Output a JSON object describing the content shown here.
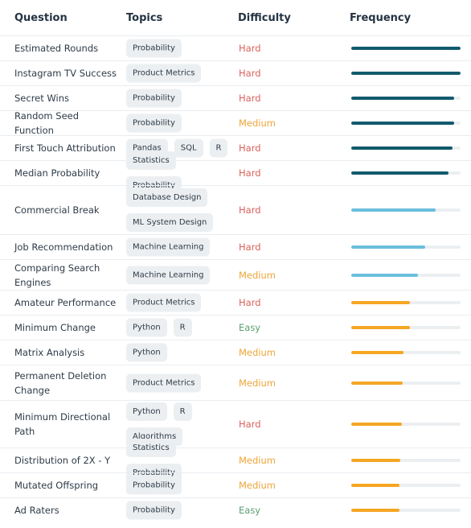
{
  "headers": {
    "question": "Question",
    "topics": "Topics",
    "difficulty": "Difficulty",
    "frequency": "Frequency"
  },
  "colors": {
    "hard": "#d9625b",
    "medium": "#eda53a",
    "easy": "#5a9e6f",
    "freq_high": "#125a6e",
    "freq_mid": "#6bbfde",
    "freq_low": "#f5a623"
  },
  "rows": [
    {
      "question": "Estimated Rounds",
      "topics": [
        "Probability"
      ],
      "difficulty": "Hard",
      "frequency": 1.0,
      "freq_color": "#125a6e"
    },
    {
      "question": "Instagram TV Success",
      "topics": [
        "Product Metrics"
      ],
      "difficulty": "Hard",
      "frequency": 1.0,
      "freq_color": "#125a6e"
    },
    {
      "question": "Secret Wins",
      "topics": [
        "Probability"
      ],
      "difficulty": "Hard",
      "frequency": 0.94,
      "freq_color": "#125a6e"
    },
    {
      "question": "Random Seed Function",
      "topics": [
        "Probability"
      ],
      "difficulty": "Medium",
      "frequency": 0.94,
      "freq_color": "#125a6e"
    },
    {
      "question": "First Touch Attribution",
      "topics": [
        "Pandas",
        "SQL",
        "R"
      ],
      "difficulty": "Hard",
      "frequency": 0.93,
      "freq_color": "#125a6e"
    },
    {
      "question": "Median Probability",
      "topics": [
        "Statistics",
        "Probability"
      ],
      "difficulty": "Hard",
      "frequency": 0.89,
      "freq_color": "#125a6e"
    },
    {
      "question": "Commercial Break",
      "topics": [
        "Database Design",
        "ML System Design"
      ],
      "difficulty": "Hard",
      "frequency": 0.77,
      "freq_color": "#6bbfde"
    },
    {
      "question": "Job Recommendation",
      "topics": [
        "Machine Learning"
      ],
      "difficulty": "Hard",
      "frequency": 0.68,
      "freq_color": "#6bbfde"
    },
    {
      "question": "Comparing Search Engines",
      "topics": [
        "Machine Learning"
      ],
      "difficulty": "Medium",
      "frequency": 0.61,
      "freq_color": "#6bbfde"
    },
    {
      "question": "Amateur Performance",
      "topics": [
        "Product Metrics"
      ],
      "difficulty": "Hard",
      "frequency": 0.54,
      "freq_color": "#f5a623"
    },
    {
      "question": "Minimum Change",
      "topics": [
        "Python",
        "R"
      ],
      "difficulty": "Easy",
      "frequency": 0.54,
      "freq_color": "#f5a623"
    },
    {
      "question": "Matrix Analysis",
      "topics": [
        "Python"
      ],
      "difficulty": "Medium",
      "frequency": 0.48,
      "freq_color": "#f5a623"
    },
    {
      "question": "Permanent Deletion Change",
      "topics": [
        "Product Metrics"
      ],
      "difficulty": "Medium",
      "frequency": 0.47,
      "freq_color": "#f5a623"
    },
    {
      "question": "Minimum Directional Path",
      "topics": [
        "Python",
        "R",
        "Algorithms"
      ],
      "difficulty": "Hard",
      "frequency": 0.46,
      "freq_color": "#f5a623"
    },
    {
      "question": "Distribution of 2X - Y",
      "topics": [
        "Statistics",
        "Probability"
      ],
      "difficulty": "Medium",
      "frequency": 0.45,
      "freq_color": "#f5a623"
    },
    {
      "question": "Mutated Offspring",
      "topics": [
        "Probability"
      ],
      "difficulty": "Medium",
      "frequency": 0.44,
      "freq_color": "#f5a623"
    },
    {
      "question": "Ad Raters",
      "topics": [
        "Probability"
      ],
      "difficulty": "Easy",
      "frequency": 0.44,
      "freq_color": "#f5a623"
    }
  ]
}
